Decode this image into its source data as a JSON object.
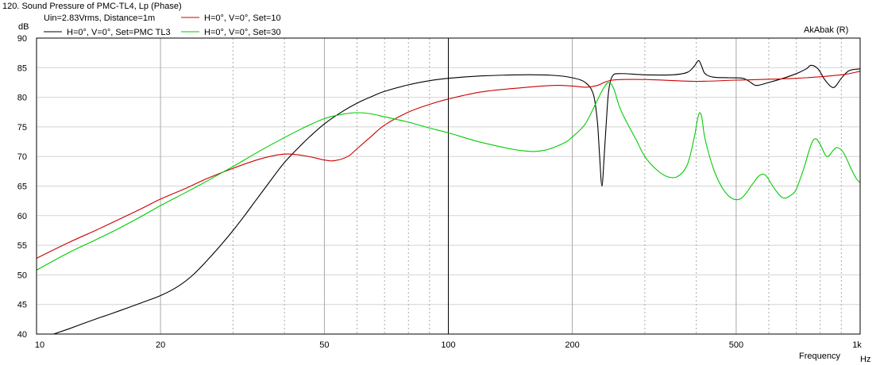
{
  "chart_data": {
    "type": "line",
    "title": "120. Sound Pressure of PMC-TL4, Lp (Phase)",
    "subtitle": "Uin=2.83Vrms, Distance=1m",
    "watermark": "AkAbak (R)",
    "ylabel": "dB",
    "xlabel": "Frequency",
    "xunit": "Hz",
    "xscale": "log",
    "xlim": [
      10,
      1000
    ],
    "ylim": [
      40,
      90
    ],
    "grid": true,
    "legend_position": "top-left",
    "y_ticks": [
      "90",
      "85",
      "80",
      "75",
      "70",
      "65",
      "60",
      "55",
      "50",
      "45",
      "40"
    ],
    "x_tick_labels": [
      {
        "value": 10,
        "label": "10"
      },
      {
        "value": 20,
        "label": "20"
      },
      {
        "value": 50,
        "label": "50"
      },
      {
        "value": 100,
        "label": "100"
      },
      {
        "value": 200,
        "label": "200"
      },
      {
        "value": 500,
        "label": "500"
      },
      {
        "value": 1000,
        "label": "1k"
      }
    ],
    "series": [
      {
        "name": "H=0°, V=0°, Set=PMC TL3",
        "color": "#000000",
        "points": [
          [
            11,
            40
          ],
          [
            12,
            40.9
          ],
          [
            13,
            41.8
          ],
          [
            14,
            42.6
          ],
          [
            15,
            43.3
          ],
          [
            16,
            44
          ],
          [
            18,
            45.3
          ],
          [
            20,
            46.5
          ],
          [
            22,
            48
          ],
          [
            24,
            50
          ],
          [
            26,
            52.5
          ],
          [
            28,
            55
          ],
          [
            30,
            57.5
          ],
          [
            32,
            60
          ],
          [
            34,
            62.5
          ],
          [
            36,
            64.8
          ],
          [
            38,
            67
          ],
          [
            40,
            69
          ],
          [
            43,
            71.3
          ],
          [
            46,
            73.3
          ],
          [
            50,
            75.5
          ],
          [
            55,
            77.5
          ],
          [
            60,
            79
          ],
          [
            65,
            80.1
          ],
          [
            70,
            81
          ],
          [
            80,
            82.1
          ],
          [
            90,
            82.8
          ],
          [
            100,
            83.2
          ],
          [
            120,
            83.6
          ],
          [
            150,
            83.8
          ],
          [
            180,
            83.7
          ],
          [
            200,
            83.3
          ],
          [
            215,
            82.5
          ],
          [
            225,
            80.5
          ],
          [
            230,
            76
          ],
          [
            233,
            70
          ],
          [
            236,
            65
          ],
          [
            239,
            70
          ],
          [
            242,
            76
          ],
          [
            245,
            81
          ],
          [
            250,
            83.5
          ],
          [
            260,
            84
          ],
          [
            300,
            83.8
          ],
          [
            350,
            83.8
          ],
          [
            380,
            84.2
          ],
          [
            395,
            85.2
          ],
          [
            405,
            86.2
          ],
          [
            412,
            85.3
          ],
          [
            420,
            84
          ],
          [
            440,
            83.4
          ],
          [
            480,
            83.3
          ],
          [
            520,
            83.2
          ],
          [
            540,
            82.6
          ],
          [
            560,
            82
          ],
          [
            600,
            82.5
          ],
          [
            650,
            83.2
          ],
          [
            700,
            84
          ],
          [
            740,
            84.8
          ],
          [
            760,
            85.4
          ],
          [
            790,
            84.8
          ],
          [
            820,
            83
          ],
          [
            850,
            81.8
          ],
          [
            870,
            81.8
          ],
          [
            900,
            83.2
          ],
          [
            940,
            84.5
          ],
          [
            1000,
            84.8
          ]
        ]
      },
      {
        "name": "H=0°, V=0°, Set=10",
        "color": "#cc0000",
        "points": [
          [
            10,
            52.8
          ],
          [
            12,
            55.5
          ],
          [
            14,
            57.6
          ],
          [
            16,
            59.5
          ],
          [
            18,
            61.2
          ],
          [
            20,
            62.8
          ],
          [
            23,
            64.6
          ],
          [
            26,
            66.3
          ],
          [
            30,
            68
          ],
          [
            35,
            69.6
          ],
          [
            40,
            70.4
          ],
          [
            45,
            70.1
          ],
          [
            50,
            69.4
          ],
          [
            53,
            69.3
          ],
          [
            57,
            70
          ],
          [
            60,
            71.3
          ],
          [
            65,
            73.4
          ],
          [
            70,
            75.3
          ],
          [
            80,
            77.5
          ],
          [
            90,
            78.8
          ],
          [
            100,
            79.7
          ],
          [
            120,
            80.9
          ],
          [
            150,
            81.6
          ],
          [
            180,
            82
          ],
          [
            200,
            81.9
          ],
          [
            215,
            81.7
          ],
          [
            230,
            82
          ],
          [
            250,
            82.9
          ],
          [
            300,
            83
          ],
          [
            400,
            82.7
          ],
          [
            500,
            82.9
          ],
          [
            700,
            83.2
          ],
          [
            900,
            83.8
          ],
          [
            1000,
            84.4
          ]
        ]
      },
      {
        "name": "H=0°, V=0°, Set=30",
        "color": "#00cc00",
        "points": [
          [
            10,
            50.8
          ],
          [
            12,
            53.8
          ],
          [
            14,
            56
          ],
          [
            16,
            58
          ],
          [
            18,
            59.9
          ],
          [
            20,
            61.7
          ],
          [
            23,
            63.9
          ],
          [
            26,
            65.9
          ],
          [
            30,
            68.3
          ],
          [
            35,
            71
          ],
          [
            40,
            73.2
          ],
          [
            45,
            75
          ],
          [
            50,
            76.4
          ],
          [
            55,
            77.1
          ],
          [
            60,
            77.4
          ],
          [
            65,
            77.2
          ],
          [
            70,
            76.7
          ],
          [
            80,
            75.8
          ],
          [
            90,
            74.8
          ],
          [
            100,
            74
          ],
          [
            120,
            72.4
          ],
          [
            150,
            71
          ],
          [
            170,
            71
          ],
          [
            190,
            72.2
          ],
          [
            200,
            73.3
          ],
          [
            215,
            75.5
          ],
          [
            230,
            79.5
          ],
          [
            238,
            81.5
          ],
          [
            245,
            82.5
          ],
          [
            252,
            81.5
          ],
          [
            260,
            78.5
          ],
          [
            270,
            76
          ],
          [
            285,
            73
          ],
          [
            300,
            70
          ],
          [
            320,
            67.8
          ],
          [
            340,
            66.6
          ],
          [
            360,
            66.6
          ],
          [
            380,
            68.5
          ],
          [
            395,
            73
          ],
          [
            405,
            77
          ],
          [
            412,
            76.8
          ],
          [
            420,
            73
          ],
          [
            440,
            68
          ],
          [
            460,
            65
          ],
          [
            480,
            63.3
          ],
          [
            500,
            62.7
          ],
          [
            520,
            63.2
          ],
          [
            550,
            65.5
          ],
          [
            570,
            66.8
          ],
          [
            590,
            66.8
          ],
          [
            620,
            64.5
          ],
          [
            650,
            63
          ],
          [
            680,
            63.5
          ],
          [
            700,
            64.5
          ],
          [
            730,
            68
          ],
          [
            760,
            72
          ],
          [
            780,
            73
          ],
          [
            800,
            72
          ],
          [
            830,
            70
          ],
          [
            860,
            71
          ],
          [
            880,
            71.5
          ],
          [
            910,
            70.7
          ],
          [
            950,
            68
          ],
          [
            980,
            66.2
          ],
          [
            1000,
            65.6
          ]
        ]
      }
    ]
  }
}
